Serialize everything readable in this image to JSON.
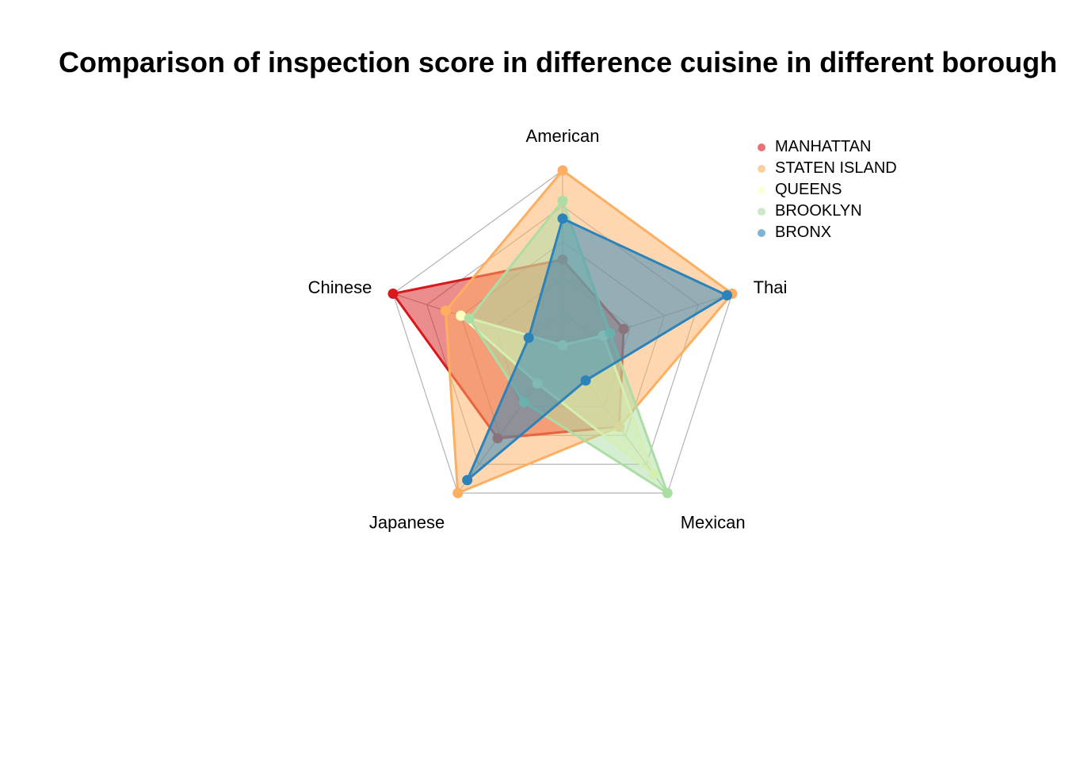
{
  "chart_data": {
    "type": "radar",
    "title": "Comparison of inspection score in difference cuisine in different borough",
    "categories": [
      "American",
      "Thai",
      "Mexican",
      "Japanese",
      "Chinese"
    ],
    "range": [
      0,
      1
    ],
    "grid_levels": 5,
    "legend_position": "top-right",
    "series": [
      {
        "name": "MANHATTAN",
        "color": "#d7191c",
        "values": [
          0.5,
          0.36,
          0.54,
          0.62,
          1.0
        ]
      },
      {
        "name": "STATEN ISLAND",
        "color": "#fdae61",
        "values": [
          1.0,
          1.0,
          0.54,
          1.0,
          0.69
        ]
      },
      {
        "name": "QUEENS",
        "color": "#ffffbf",
        "values": [
          0.02,
          0.24,
          0.87,
          0.24,
          0.6
        ]
      },
      {
        "name": "BROOKLYN",
        "color": "#abdda4",
        "values": [
          0.83,
          0.28,
          1.0,
          0.37,
          0.55
        ]
      },
      {
        "name": "BRONX",
        "color": "#2b83ba",
        "values": [
          0.73,
          0.97,
          0.22,
          0.91,
          0.2
        ]
      }
    ]
  }
}
